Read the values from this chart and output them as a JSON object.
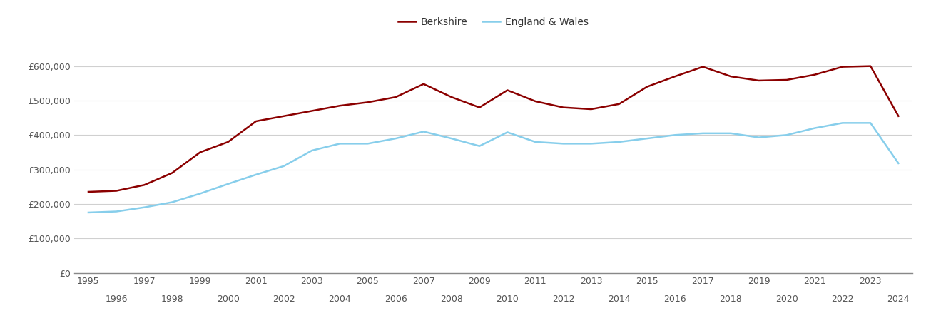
{
  "berkshire": {
    "years": [
      1995,
      1996,
      1997,
      1998,
      1999,
      2000,
      2001,
      2002,
      2003,
      2004,
      2005,
      2006,
      2007,
      2008,
      2009,
      2010,
      2011,
      2012,
      2013,
      2014,
      2015,
      2016,
      2017,
      2018,
      2019,
      2020,
      2021,
      2022,
      2023,
      2024
    ],
    "values": [
      235000,
      238000,
      255000,
      290000,
      350000,
      380000,
      440000,
      455000,
      470000,
      485000,
      495000,
      510000,
      548000,
      510000,
      480000,
      530000,
      498000,
      480000,
      475000,
      490000,
      540000,
      570000,
      598000,
      570000,
      558000,
      560000,
      575000,
      598000,
      600000,
      455000
    ]
  },
  "england_wales": {
    "years": [
      1995,
      1996,
      1997,
      1998,
      1999,
      2000,
      2001,
      2002,
      2003,
      2004,
      2005,
      2006,
      2007,
      2008,
      2009,
      2010,
      2011,
      2012,
      2013,
      2014,
      2015,
      2016,
      2017,
      2018,
      2019,
      2020,
      2021,
      2022,
      2023,
      2024
    ],
    "values": [
      175000,
      178000,
      190000,
      205000,
      230000,
      258000,
      285000,
      310000,
      355000,
      375000,
      375000,
      390000,
      410000,
      390000,
      368000,
      408000,
      380000,
      375000,
      375000,
      380000,
      390000,
      400000,
      405000,
      405000,
      393000,
      400000,
      420000,
      435000,
      435000,
      318000
    ]
  },
  "berkshire_color": "#8B0000",
  "england_wales_color": "#87CEEB",
  "background_color": "#ffffff",
  "grid_color": "#d0d0d0",
  "ylim": [
    0,
    680000
  ],
  "yticks": [
    0,
    100000,
    200000,
    300000,
    400000,
    500000,
    600000
  ],
  "ytick_labels": [
    "£0",
    "£100,000",
    "£200,000",
    "£300,000",
    "£400,000",
    "£500,000",
    "£600,000"
  ],
  "xticks_row1": [
    1995,
    1997,
    1999,
    2001,
    2003,
    2005,
    2007,
    2009,
    2011,
    2013,
    2015,
    2017,
    2019,
    2021,
    2023
  ],
  "xticks_row2": [
    1996,
    1998,
    2000,
    2002,
    2004,
    2006,
    2008,
    2010,
    2012,
    2014,
    2016,
    2018,
    2020,
    2022,
    2024
  ],
  "legend_labels": [
    "Berkshire",
    "England & Wales"
  ],
  "line_width": 1.8,
  "tick_fontsize": 9,
  "legend_fontsize": 10
}
